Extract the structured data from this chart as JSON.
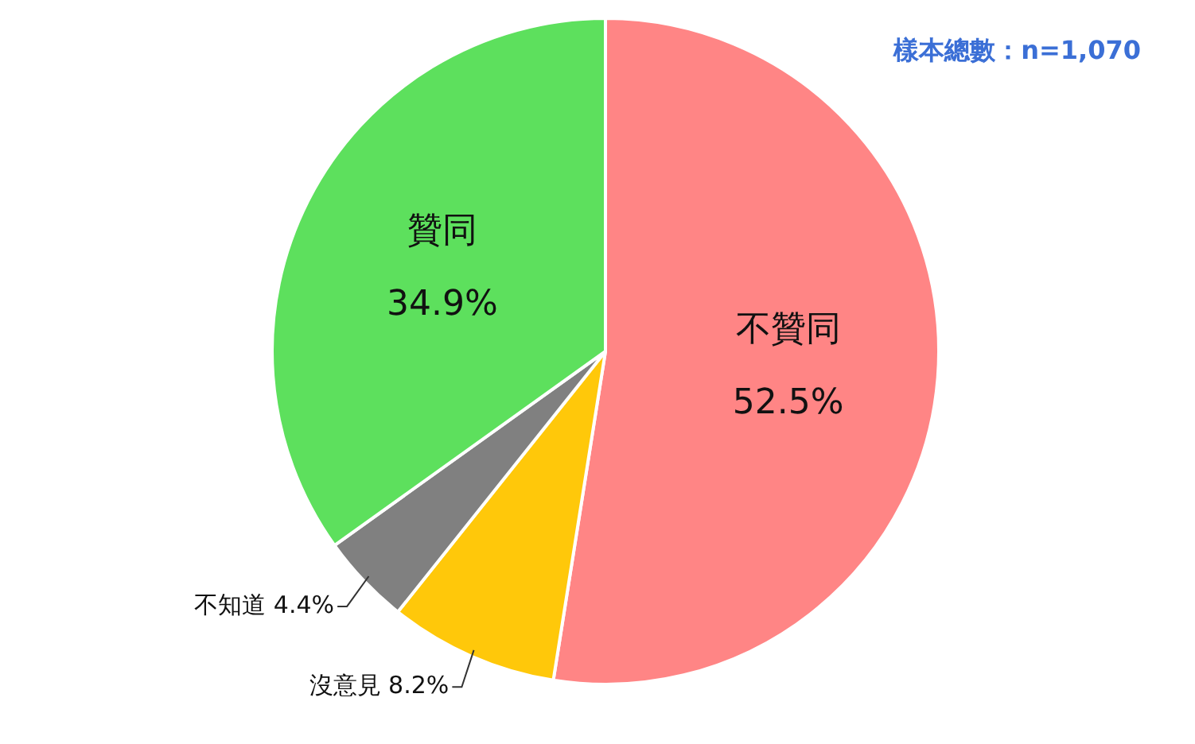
{
  "chart_data": {
    "type": "pie",
    "categories": [
      "不贊同",
      "沒意見",
      "不知道",
      "贊同"
    ],
    "values": [
      52.5,
      8.2,
      4.4,
      34.9
    ],
    "colors": [
      "#ff8585",
      "#ffc80a",
      "#808080",
      "#5de05d"
    ],
    "value_labels": [
      "52.5%",
      "8.2%",
      "4.4%",
      "34.9%"
    ],
    "annotations": [
      "樣本總數：n=1,070"
    ]
  }
}
